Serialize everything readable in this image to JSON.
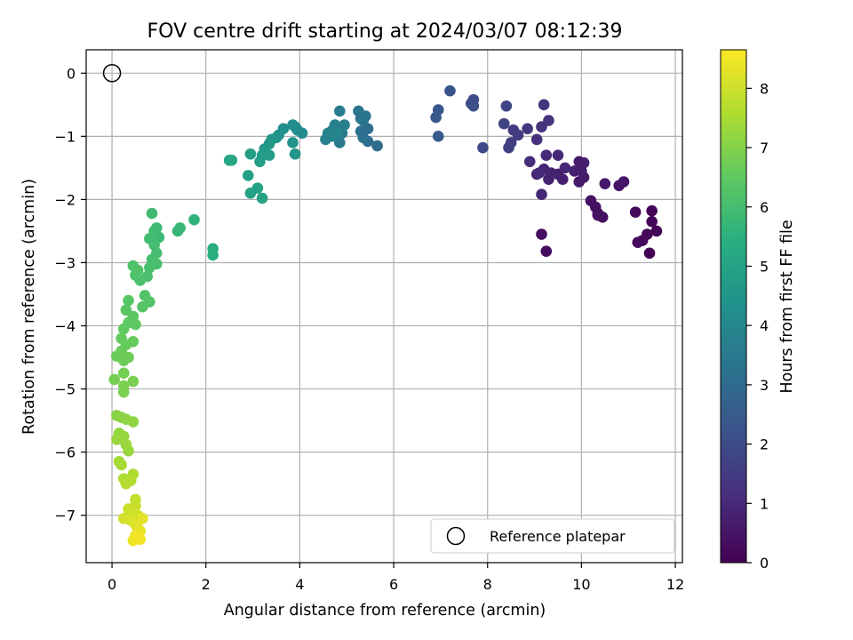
{
  "chart_data": {
    "type": "scatter",
    "title": "FOV centre drift starting at 2024/03/07 08:12:39",
    "xlabel": "Angular distance from reference (arcmin)",
    "ylabel": "Rotation from reference (arcmin)",
    "xlim": [
      -0.55,
      12.15
    ],
    "ylim": [
      -7.75,
      0.37
    ],
    "xticks": [
      0,
      2,
      4,
      6,
      8,
      10,
      12
    ],
    "yticks": [
      0,
      -1,
      -2,
      -3,
      -4,
      -5,
      -6,
      -7
    ],
    "grid": true,
    "legend": {
      "placement": "bottom-right",
      "entries": [
        "Reference platepar"
      ]
    },
    "reference_point": {
      "x": 0,
      "y": 0,
      "marker": "open-circle"
    },
    "colorbar": {
      "label": "Hours from first FF file",
      "colormap": "viridis",
      "range": [
        0,
        8.65
      ],
      "ticks": [
        0,
        1,
        2,
        3,
        4,
        5,
        6,
        7,
        8
      ]
    },
    "series": [
      {
        "points": [
          {
            "x": 11.45,
            "y": -2.85,
            "c": 0.0
          },
          {
            "x": 11.6,
            "y": -2.5,
            "c": 0.05
          },
          {
            "x": 11.5,
            "y": -2.18,
            "c": 0.1
          },
          {
            "x": 11.5,
            "y": -2.35,
            "c": 0.12
          },
          {
            "x": 11.4,
            "y": -2.55,
            "c": 0.15
          },
          {
            "x": 11.3,
            "y": -2.65,
            "c": 0.2
          },
          {
            "x": 11.2,
            "y": -2.68,
            "c": 0.22
          },
          {
            "x": 11.15,
            "y": -2.2,
            "c": 0.25
          },
          {
            "x": 9.25,
            "y": -2.82,
            "c": 0.3
          },
          {
            "x": 9.15,
            "y": -2.55,
            "c": 0.32
          },
          {
            "x": 10.45,
            "y": -2.28,
            "c": 0.35
          },
          {
            "x": 10.35,
            "y": -2.22,
            "c": 0.38
          },
          {
            "x": 10.3,
            "y": -2.12,
            "c": 0.4
          },
          {
            "x": 10.2,
            "y": -2.02,
            "c": 0.42
          },
          {
            "x": 10.35,
            "y": -2.25,
            "c": 0.44
          },
          {
            "x": 10.8,
            "y": -1.78,
            "c": 0.5
          },
          {
            "x": 10.9,
            "y": -1.72,
            "c": 0.52
          },
          {
            "x": 10.5,
            "y": -1.75,
            "c": 0.55
          },
          {
            "x": 9.95,
            "y": -1.72,
            "c": 0.6
          },
          {
            "x": 10.05,
            "y": -1.65,
            "c": 0.62
          },
          {
            "x": 9.95,
            "y": -1.4,
            "c": 0.65
          },
          {
            "x": 10.05,
            "y": -1.42,
            "c": 0.68
          },
          {
            "x": 10.0,
            "y": -1.55,
            "c": 0.7
          },
          {
            "x": 9.85,
            "y": -1.55,
            "c": 0.72
          },
          {
            "x": 9.6,
            "y": -1.68,
            "c": 0.75
          },
          {
            "x": 9.5,
            "y": -1.6,
            "c": 0.78
          },
          {
            "x": 9.35,
            "y": -1.58,
            "c": 0.8
          },
          {
            "x": 9.3,
            "y": -1.68,
            "c": 0.82
          },
          {
            "x": 9.2,
            "y": -1.52,
            "c": 0.85
          },
          {
            "x": 9.05,
            "y": -1.6,
            "c": 0.87
          },
          {
            "x": 9.15,
            "y": -1.92,
            "c": 0.9
          },
          {
            "x": 9.65,
            "y": -1.5,
            "c": 0.92
          },
          {
            "x": 9.5,
            "y": -1.3,
            "c": 0.95
          },
          {
            "x": 9.25,
            "y": -1.3,
            "c": 0.98
          },
          {
            "x": 9.1,
            "y": -1.58,
            "c": 1.0
          },
          {
            "x": 8.9,
            "y": -1.4,
            "c": 1.1
          },
          {
            "x": 9.05,
            "y": -1.05,
            "c": 1.15
          },
          {
            "x": 9.15,
            "y": -0.85,
            "c": 1.2
          },
          {
            "x": 9.3,
            "y": -0.75,
            "c": 1.25
          },
          {
            "x": 9.2,
            "y": -0.5,
            "c": 1.3
          },
          {
            "x": 8.85,
            "y": -0.88,
            "c": 1.4
          },
          {
            "x": 8.55,
            "y": -0.9,
            "c": 1.5
          },
          {
            "x": 8.65,
            "y": -0.98,
            "c": 1.55
          },
          {
            "x": 8.5,
            "y": -1.1,
            "c": 1.6
          },
          {
            "x": 8.45,
            "y": -1.18,
            "c": 1.65
          },
          {
            "x": 8.35,
            "y": -0.8,
            "c": 1.7
          },
          {
            "x": 8.4,
            "y": -0.52,
            "c": 1.8
          },
          {
            "x": 7.9,
            "y": -1.18,
            "c": 1.9
          },
          {
            "x": 7.7,
            "y": -0.42,
            "c": 2.0
          },
          {
            "x": 7.65,
            "y": -0.48,
            "c": 2.05
          },
          {
            "x": 7.7,
            "y": -0.52,
            "c": 2.1
          },
          {
            "x": 7.2,
            "y": -0.28,
            "c": 2.2
          },
          {
            "x": 6.95,
            "y": -0.58,
            "c": 2.3
          },
          {
            "x": 6.9,
            "y": -0.7,
            "c": 2.35
          },
          {
            "x": 6.95,
            "y": -1.0,
            "c": 2.45
          },
          {
            "x": 5.65,
            "y": -1.15,
            "c": 3.0
          },
          {
            "x": 5.45,
            "y": -1.08,
            "c": 3.05
          },
          {
            "x": 5.45,
            "y": -0.88,
            "c": 3.1
          },
          {
            "x": 5.3,
            "y": -0.92,
            "c": 3.15
          },
          {
            "x": 5.35,
            "y": -1.02,
            "c": 3.2
          },
          {
            "x": 5.3,
            "y": -0.72,
            "c": 3.25
          },
          {
            "x": 5.4,
            "y": -0.68,
            "c": 3.3
          },
          {
            "x": 5.25,
            "y": -0.6,
            "c": 3.35
          },
          {
            "x": 5.35,
            "y": -0.75,
            "c": 3.4
          },
          {
            "x": 4.85,
            "y": -1.1,
            "c": 3.5
          },
          {
            "x": 4.9,
            "y": -0.95,
            "c": 3.55
          },
          {
            "x": 4.85,
            "y": -0.6,
            "c": 3.6
          },
          {
            "x": 4.95,
            "y": -0.82,
            "c": 3.65
          },
          {
            "x": 4.75,
            "y": -0.82,
            "c": 3.7
          },
          {
            "x": 4.7,
            "y": -0.9,
            "c": 3.75
          },
          {
            "x": 4.6,
            "y": -0.95,
            "c": 3.8
          },
          {
            "x": 4.55,
            "y": -1.05,
            "c": 3.85
          },
          {
            "x": 4.7,
            "y": -1.0,
            "c": 3.9
          },
          {
            "x": 4.8,
            "y": -0.95,
            "c": 3.95
          },
          {
            "x": 4.05,
            "y": -0.95,
            "c": 4.1
          },
          {
            "x": 3.95,
            "y": -0.9,
            "c": 4.15
          },
          {
            "x": 3.9,
            "y": -0.85,
            "c": 4.2
          },
          {
            "x": 3.85,
            "y": -0.82,
            "c": 4.25
          },
          {
            "x": 3.65,
            "y": -0.88,
            "c": 4.3
          },
          {
            "x": 3.55,
            "y": -0.98,
            "c": 4.35
          },
          {
            "x": 3.5,
            "y": -1.02,
            "c": 4.4
          },
          {
            "x": 3.85,
            "y": -1.1,
            "c": 4.45
          },
          {
            "x": 3.9,
            "y": -1.28,
            "c": 4.5
          },
          {
            "x": 3.4,
            "y": -1.05,
            "c": 4.55
          },
          {
            "x": 3.35,
            "y": -1.12,
            "c": 4.6
          },
          {
            "x": 3.25,
            "y": -1.2,
            "c": 4.65
          },
          {
            "x": 3.2,
            "y": -1.3,
            "c": 4.7
          },
          {
            "x": 3.35,
            "y": -1.3,
            "c": 4.75
          },
          {
            "x": 3.15,
            "y": -1.4,
            "c": 4.8
          },
          {
            "x": 2.95,
            "y": -1.28,
            "c": 4.85
          },
          {
            "x": 2.9,
            "y": -1.62,
            "c": 4.9
          },
          {
            "x": 3.1,
            "y": -1.82,
            "c": 4.92
          },
          {
            "x": 2.95,
            "y": -1.9,
            "c": 4.95
          },
          {
            "x": 3.2,
            "y": -1.98,
            "c": 4.97
          },
          {
            "x": 2.5,
            "y": -1.38,
            "c": 5.05
          },
          {
            "x": 2.55,
            "y": -1.38,
            "c": 5.1
          },
          {
            "x": 2.15,
            "y": -2.78,
            "c": 5.4
          },
          {
            "x": 2.15,
            "y": -2.88,
            "c": 5.45
          },
          {
            "x": 1.75,
            "y": -2.32,
            "c": 5.6
          },
          {
            "x": 1.4,
            "y": -2.5,
            "c": 5.7
          },
          {
            "x": 1.45,
            "y": -2.45,
            "c": 5.75
          },
          {
            "x": 1.0,
            "y": -2.6,
            "c": 5.8
          },
          {
            "x": 0.95,
            "y": -2.45,
            "c": 5.85
          },
          {
            "x": 0.85,
            "y": -2.22,
            "c": 5.9
          },
          {
            "x": 0.9,
            "y": -2.5,
            "c": 5.92
          },
          {
            "x": 0.8,
            "y": -2.62,
            "c": 5.95
          },
          {
            "x": 0.9,
            "y": -2.72,
            "c": 5.98
          },
          {
            "x": 0.95,
            "y": -2.85,
            "c": 6.0
          },
          {
            "x": 0.85,
            "y": -2.95,
            "c": 6.02
          },
          {
            "x": 0.95,
            "y": -3.02,
            "c": 6.05
          },
          {
            "x": 0.8,
            "y": -3.08,
            "c": 6.08
          },
          {
            "x": 0.75,
            "y": -3.22,
            "c": 6.1
          },
          {
            "x": 0.6,
            "y": -3.28,
            "c": 6.12
          },
          {
            "x": 0.5,
            "y": -3.2,
            "c": 6.15
          },
          {
            "x": 0.45,
            "y": -3.05,
            "c": 6.18
          },
          {
            "x": 0.55,
            "y": -3.12,
            "c": 6.2
          },
          {
            "x": 0.7,
            "y": -3.52,
            "c": 6.25
          },
          {
            "x": 0.8,
            "y": -3.62,
            "c": 6.28
          },
          {
            "x": 0.65,
            "y": -3.7,
            "c": 6.3
          },
          {
            "x": 0.35,
            "y": -3.6,
            "c": 6.35
          },
          {
            "x": 0.3,
            "y": -3.75,
            "c": 6.38
          },
          {
            "x": 0.45,
            "y": -3.85,
            "c": 6.4
          },
          {
            "x": 0.35,
            "y": -3.95,
            "c": 6.45
          },
          {
            "x": 0.5,
            "y": -3.98,
            "c": 6.48
          },
          {
            "x": 0.25,
            "y": -4.05,
            "c": 6.5
          },
          {
            "x": 0.2,
            "y": -4.2,
            "c": 6.55
          },
          {
            "x": 0.45,
            "y": -4.25,
            "c": 6.58
          },
          {
            "x": 0.3,
            "y": -4.3,
            "c": 6.6
          },
          {
            "x": 0.2,
            "y": -4.4,
            "c": 6.62
          },
          {
            "x": 0.1,
            "y": -4.48,
            "c": 6.65
          },
          {
            "x": 0.25,
            "y": -4.55,
            "c": 6.68
          },
          {
            "x": 0.35,
            "y": -4.5,
            "c": 6.7
          },
          {
            "x": 0.25,
            "y": -4.75,
            "c": 6.8
          },
          {
            "x": 0.05,
            "y": -4.85,
            "c": 6.82
          },
          {
            "x": 0.45,
            "y": -4.88,
            "c": 6.85
          },
          {
            "x": 0.25,
            "y": -4.95,
            "c": 6.88
          },
          {
            "x": 0.25,
            "y": -5.05,
            "c": 6.9
          },
          {
            "x": 0.1,
            "y": -5.42,
            "c": 7.05
          },
          {
            "x": 0.2,
            "y": -5.45,
            "c": 7.1
          },
          {
            "x": 0.3,
            "y": -5.48,
            "c": 7.12
          },
          {
            "x": 0.45,
            "y": -5.52,
            "c": 7.15
          },
          {
            "x": 0.15,
            "y": -5.7,
            "c": 7.2
          },
          {
            "x": 0.25,
            "y": -5.75,
            "c": 7.22
          },
          {
            "x": 0.1,
            "y": -5.8,
            "c": 7.25
          },
          {
            "x": 0.3,
            "y": -5.88,
            "c": 7.28
          },
          {
            "x": 0.35,
            "y": -5.98,
            "c": 7.3
          },
          {
            "x": 0.15,
            "y": -6.15,
            "c": 7.45
          },
          {
            "x": 0.2,
            "y": -6.2,
            "c": 7.48
          },
          {
            "x": 0.45,
            "y": -6.35,
            "c": 7.55
          },
          {
            "x": 0.25,
            "y": -6.42,
            "c": 7.6
          },
          {
            "x": 0.3,
            "y": -6.5,
            "c": 7.65
          },
          {
            "x": 0.4,
            "y": -6.45,
            "c": 7.68
          },
          {
            "x": 0.5,
            "y": -6.75,
            "c": 7.85
          },
          {
            "x": 0.5,
            "y": -6.85,
            "c": 7.9
          },
          {
            "x": 0.35,
            "y": -6.9,
            "c": 7.95
          },
          {
            "x": 0.45,
            "y": -6.95,
            "c": 8.0
          },
          {
            "x": 0.55,
            "y": -7.0,
            "c": 8.05
          },
          {
            "x": 0.25,
            "y": -7.05,
            "c": 8.1
          },
          {
            "x": 0.4,
            "y": -7.08,
            "c": 8.15
          },
          {
            "x": 0.5,
            "y": -7.15,
            "c": 8.2
          },
          {
            "x": 0.55,
            "y": -7.2,
            "c": 8.25
          },
          {
            "x": 0.65,
            "y": -7.05,
            "c": 8.3
          },
          {
            "x": 0.6,
            "y": -7.25,
            "c": 8.35
          },
          {
            "x": 0.5,
            "y": -7.32,
            "c": 8.4
          },
          {
            "x": 0.45,
            "y": -7.4,
            "c": 8.45
          },
          {
            "x": 0.6,
            "y": -7.38,
            "c": 8.5
          },
          {
            "x": 0.55,
            "y": -7.35,
            "c": 8.52
          }
        ]
      }
    ]
  }
}
